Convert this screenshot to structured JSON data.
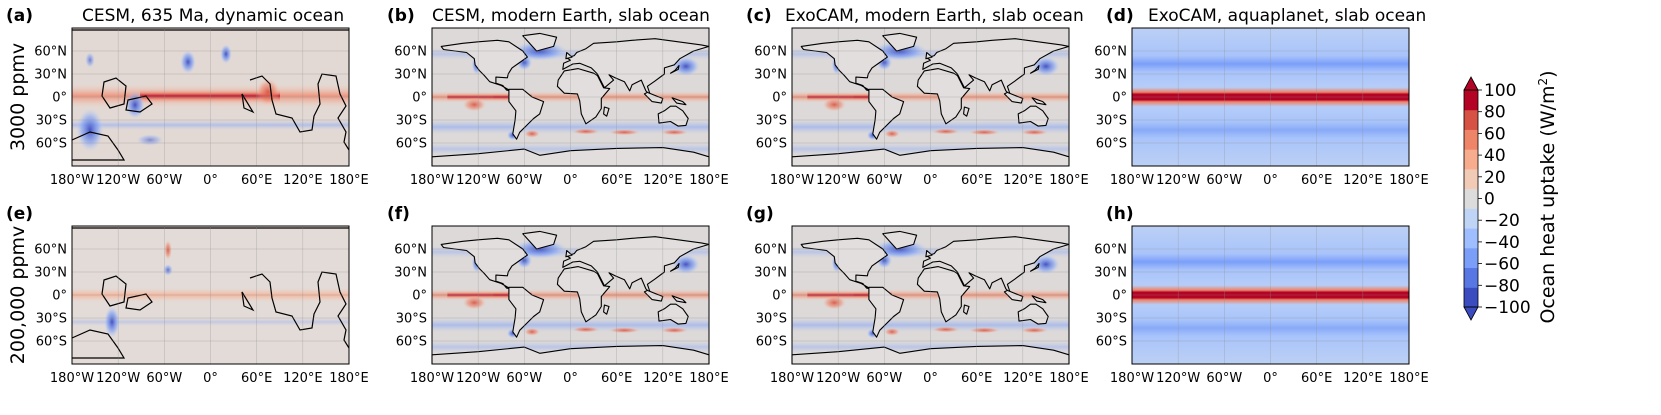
{
  "figure": {
    "row_labels": [
      "3000 ppmv",
      "200,000 ppmv"
    ],
    "colorbar": {
      "label_main": "Ocean heat uptake (W/m",
      "label_sup": "2",
      "label_close": ")",
      "ticks": [
        "100",
        "80",
        "60",
        "40",
        "20",
        "0",
        "−20",
        "−40",
        "−60",
        "−80",
        "−100"
      ],
      "range": [
        -100,
        100
      ],
      "colors": [
        "#3b4cc0",
        "#5977e3",
        "#7b9ff9",
        "#9ebeff",
        "#c0d4f5",
        "#dddcdc",
        "#f2cbb7",
        "#f7ac8e",
        "#ee8468",
        "#d65244",
        "#b40426"
      ]
    },
    "panels": [
      {
        "letter": "(a)",
        "title": "CESM, 635 Ma, dynamic ocean"
      },
      {
        "letter": "(b)",
        "title": "CESM, modern Earth, slab ocean"
      },
      {
        "letter": "(c)",
        "title": "ExoCAM, modern Earth, slab ocean"
      },
      {
        "letter": "(d)",
        "title": "ExoCAM, aquaplanet, slab ocean"
      },
      {
        "letter": "(e)",
        "title": ""
      },
      {
        "letter": "(f)",
        "title": ""
      },
      {
        "letter": "(g)",
        "title": ""
      },
      {
        "letter": "(h)",
        "title": ""
      }
    ]
  },
  "chart_data": {
    "type": "heatmap",
    "variable": "Ocean heat uptake",
    "units": "W/m2",
    "value_range": [
      -100,
      100
    ],
    "x_axis": {
      "lim": [
        -180,
        180
      ],
      "ticks": [
        -180,
        -120,
        -60,
        0,
        60,
        120,
        180
      ],
      "tick_labels": [
        "180°W",
        "120°W",
        "60°W",
        "0°",
        "60°E",
        "120°E",
        "180°E"
      ]
    },
    "y_axis": {
      "lim": [
        -90,
        90
      ],
      "ticks": [
        60,
        30,
        0,
        -30,
        -60
      ],
      "tick_labels": [
        "60°N",
        "30°N",
        "0°",
        "30°S",
        "60°S"
      ]
    },
    "panel_fields": {
      "a": {
        "description": "635 Ma continents, dynamic ocean, 3000 ppmv",
        "equatorial_max": 70,
        "west_boundary_min": -80
      },
      "b": {
        "description": "modern Earth, slab ocean, 3000 ppmv",
        "equatorial_max": 80,
        "north_atlantic_min": -80
      },
      "c": {
        "description": "modern Earth, slab ocean, 3000 ppmv",
        "equatorial_max": 80,
        "north_atlantic_min": -80
      },
      "d": {
        "description": "aquaplanet, zonally uniform, 3000 ppmv",
        "zonal_profile": [
          [
            90,
            -40
          ],
          [
            60,
            -45
          ],
          [
            40,
            -60
          ],
          [
            20,
            -35
          ],
          [
            6,
            30
          ],
          [
            0,
            100
          ],
          [
            -6,
            30
          ],
          [
            -20,
            -35
          ],
          [
            -40,
            -50
          ],
          [
            -60,
            -45
          ],
          [
            -90,
            -40
          ]
        ]
      },
      "e": {
        "description": "635 Ma continents, dynamic ocean, 200,000 ppmv",
        "equatorial_max": 35,
        "west_boundary_min": -60
      },
      "f": {
        "description": "modern Earth, slab ocean, 200,000 ppmv",
        "equatorial_max": 90,
        "north_atlantic_min": -85
      },
      "g": {
        "description": "modern Earth, slab ocean, 200,000 ppmv",
        "equatorial_max": 90,
        "north_atlantic_min": -85
      },
      "h": {
        "description": "aquaplanet, zonally uniform, 200,000 ppmv",
        "zonal_profile": [
          [
            90,
            -40
          ],
          [
            60,
            -45
          ],
          [
            40,
            -60
          ],
          [
            20,
            -35
          ],
          [
            6,
            30
          ],
          [
            0,
            100
          ],
          [
            -6,
            30
          ],
          [
            -20,
            -35
          ],
          [
            -40,
            -50
          ],
          [
            -60,
            -45
          ],
          [
            -90,
            -40
          ]
        ]
      }
    }
  }
}
